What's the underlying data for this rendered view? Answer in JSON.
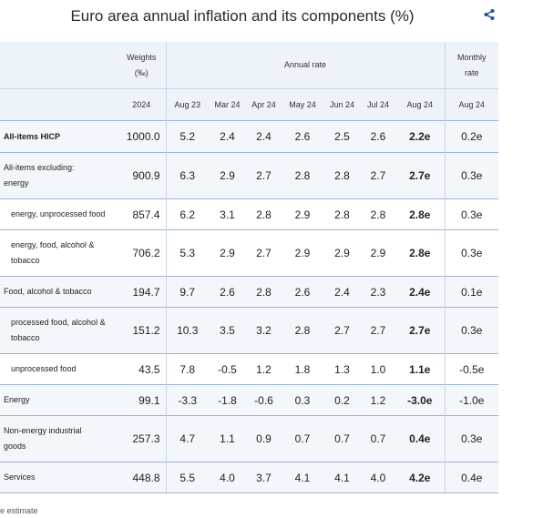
{
  "title": "Euro area annual inflation and its components (%)",
  "share_icon": "share-icon",
  "header": {
    "weights": "Weights",
    "weights_unit": "(‰)",
    "annual_rate": "Annual rate",
    "monthly": "Monthly",
    "monthly_rate": "rate",
    "columns": [
      "2024",
      "Aug 23",
      "Mar 24",
      "Apr 24",
      "May 24",
      "Jun 24",
      "Jul 24",
      "Aug 24",
      "Aug 24"
    ]
  },
  "rows": [
    {
      "label": [
        "All-items HICP"
      ],
      "values": [
        "1000.0",
        "5.2",
        "2.4",
        "2.4",
        "2.6",
        "2.5",
        "2.6",
        "2.2e",
        "0.2e"
      ]
    },
    {
      "label": [
        "All-items excluding:",
        "energy"
      ],
      "values": [
        "900.9",
        "6.3",
        "2.9",
        "2.7",
        "2.8",
        "2.8",
        "2.7",
        "2.7e",
        "0.3e"
      ]
    },
    {
      "label": [
        "energy, unprocessed food"
      ],
      "values": [
        "857.4",
        "6.2",
        "3.1",
        "2.8",
        "2.9",
        "2.8",
        "2.8",
        "2.8e",
        "0.3e"
      ]
    },
    {
      "label": [
        "energy, food, alcohol &",
        "tobacco"
      ],
      "values": [
        "706.2",
        "5.3",
        "2.9",
        "2.7",
        "2.9",
        "2.9",
        "2.9",
        "2.8e",
        "0.3e"
      ]
    },
    {
      "label": [
        "Food, alcohol & tobacco"
      ],
      "values": [
        "194.7",
        "9.7",
        "2.6",
        "2.8",
        "2.6",
        "2.4",
        "2.3",
        "2.4e",
        "0.1e"
      ]
    },
    {
      "label": [
        "processed food, alcohol &",
        "tobacco"
      ],
      "values": [
        "151.2",
        "10.3",
        "3.5",
        "3.2",
        "2.8",
        "2.7",
        "2.7",
        "2.7e",
        "0.3e"
      ]
    },
    {
      "label": [
        "unprocessed food"
      ],
      "values": [
        "43.5",
        "7.8",
        "-0.5",
        "1.2",
        "1.8",
        "1.3",
        "1.0",
        "1.1e",
        "-0.5e"
      ]
    },
    {
      "label": [
        "Energy"
      ],
      "values": [
        "99.1",
        "-3.3",
        "-1.8",
        "-0.6",
        "0.3",
        "0.2",
        "1.2",
        "-3.0e",
        "-1.0e"
      ]
    },
    {
      "label": [
        "Non-energy industrial",
        "goods"
      ],
      "values": [
        "257.3",
        "4.7",
        "1.1",
        "0.9",
        "0.7",
        "0.7",
        "0.7",
        "0.4e",
        "0.3e"
      ]
    },
    {
      "label": [
        "Services"
      ],
      "values": [
        "448.8",
        "5.5",
        "4.0",
        "3.7",
        "4.1",
        "4.1",
        "4.0",
        "4.2e",
        "0.4e"
      ]
    }
  ],
  "footnote": "e estimate"
}
